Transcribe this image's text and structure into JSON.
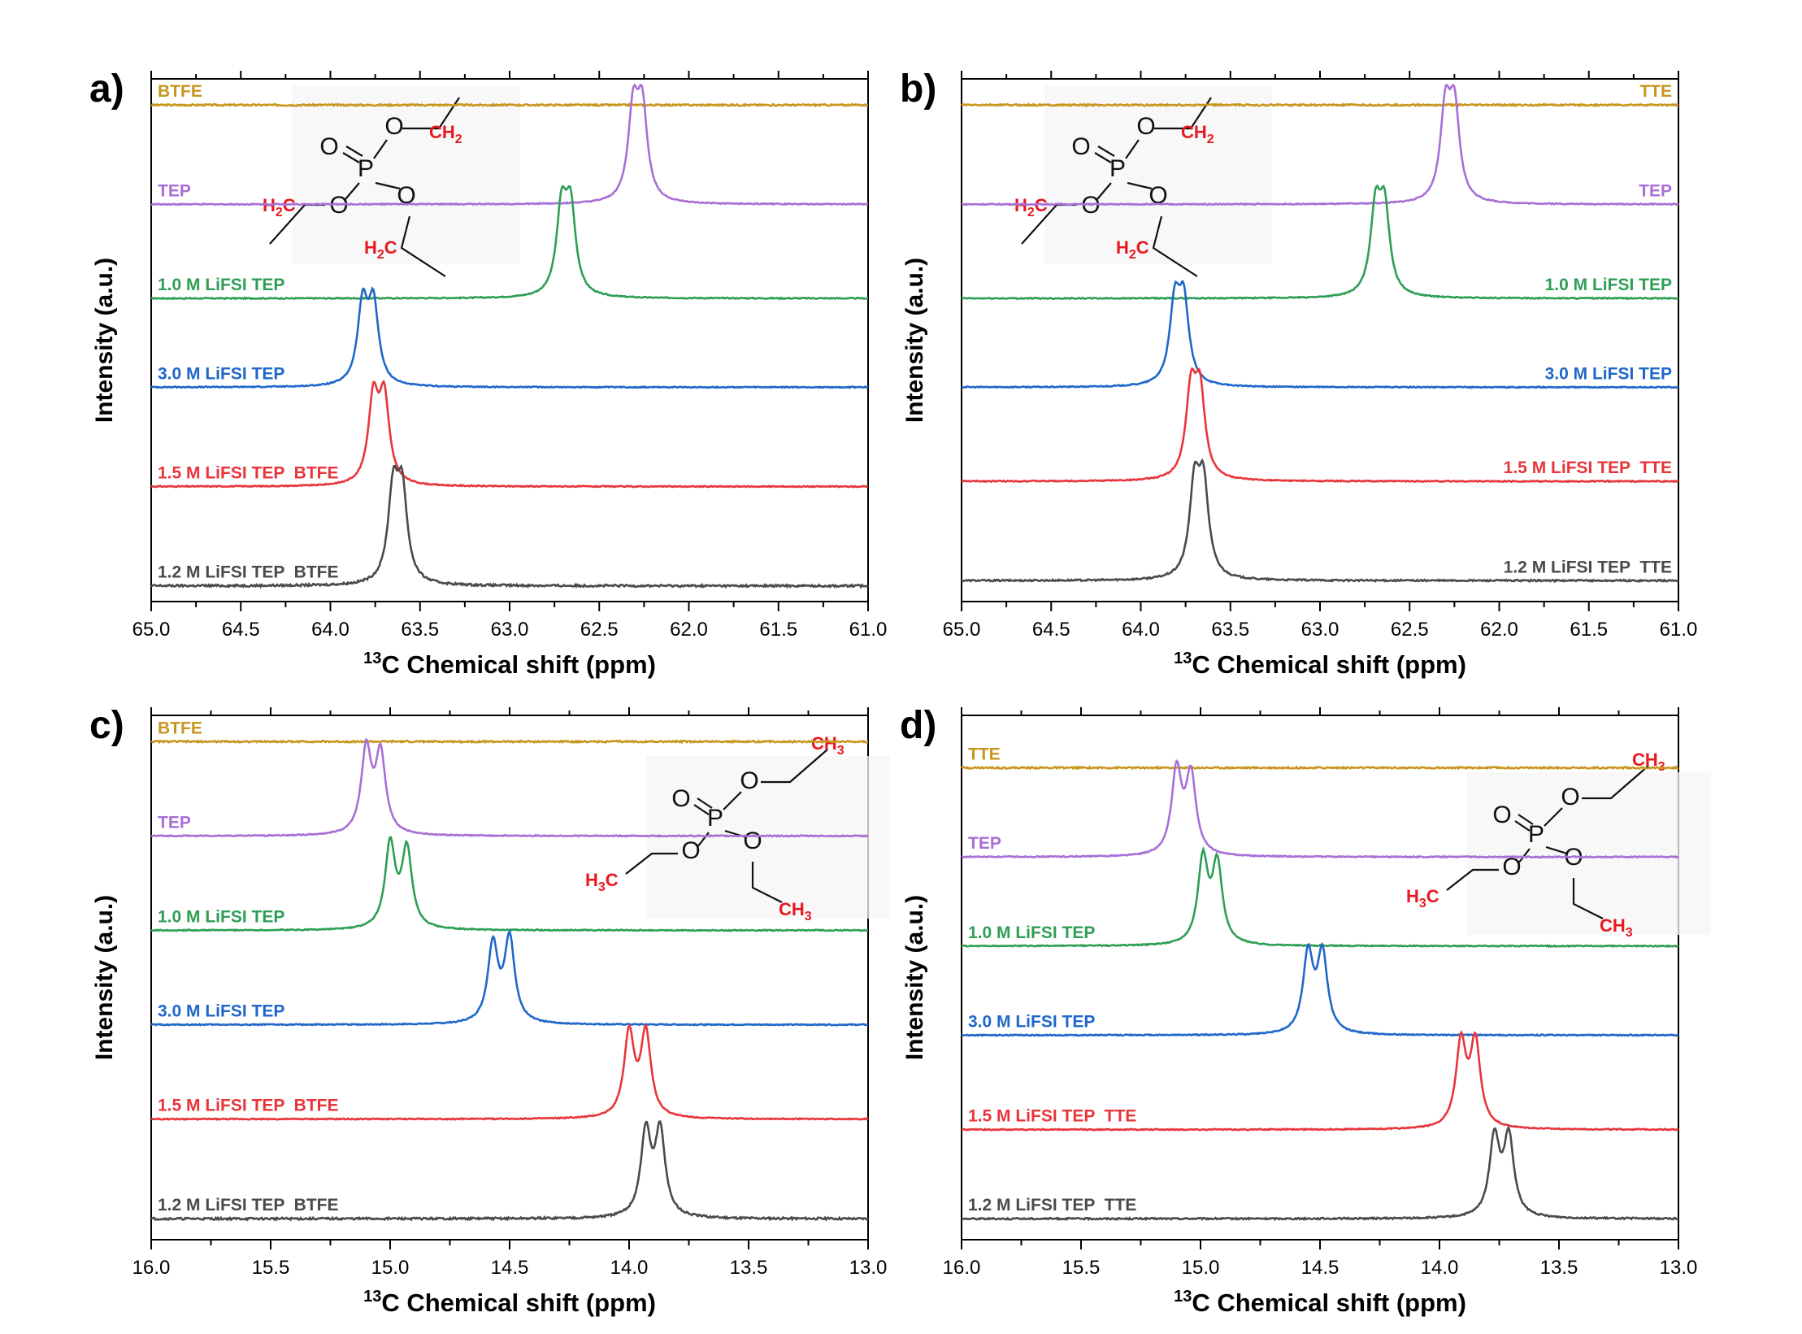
{
  "chart_data": [
    {
      "type": "line",
      "panel_label": "a)",
      "xlabel_sup": "13",
      "xlabel_rest": "C Chemical shift (ppm)",
      "ylabel": "Intensity (a.u.)",
      "xlim": [
        65.0,
        61.0
      ],
      "xticks": [
        "65.0",
        "64.5",
        "64.0",
        "63.5",
        "63.0",
        "62.5",
        "62.0",
        "61.5",
        "61.0"
      ],
      "xtick_values": [
        65.0,
        64.5,
        64.0,
        63.5,
        63.0,
        62.5,
        62.0,
        61.5,
        61.0
      ],
      "label_side": "left",
      "series": [
        {
          "name": "BTFE",
          "color": "#C8961E",
          "baseline": 0.95,
          "peaks": [],
          "noise": 0.003
        },
        {
          "name": "TEP",
          "color": "#A86FD6",
          "baseline": 0.76,
          "peaks": [
            {
              "x": 62.31,
              "h": 0.17
            },
            {
              "x": 62.26,
              "h": 0.17
            }
          ],
          "noise": 0.002
        },
        {
          "name": "1.0 M LiFSI TEP",
          "color": "#2E9E55",
          "baseline": 0.58,
          "peaks": [
            {
              "x": 62.71,
              "h": 0.16
            },
            {
              "x": 62.66,
              "h": 0.16
            }
          ],
          "noise": 0.002
        },
        {
          "name": "3.0 M LiFSI TEP",
          "color": "#1F67C9",
          "baseline": 0.41,
          "peaks": [
            {
              "x": 63.82,
              "h": 0.15
            },
            {
              "x": 63.76,
              "h": 0.15
            }
          ],
          "noise": 0.002
        },
        {
          "name": "1.5 M LiFSI TEP  BTFE",
          "color": "#E8353A",
          "baseline": 0.22,
          "peaks": [
            {
              "x": 63.76,
              "h": 0.16
            },
            {
              "x": 63.7,
              "h": 0.16
            }
          ],
          "noise": 0.002
        },
        {
          "name": "1.2 M LiFSI TEP  BTFE",
          "color": "#4A4A4A",
          "baseline": 0.03,
          "peaks": [
            {
              "x": 63.65,
              "h": 0.17
            },
            {
              "x": 63.6,
              "h": 0.17
            }
          ],
          "noise": 0.004
        }
      ],
      "molecule": {
        "type": "ch2",
        "atoms": [
          "O",
          "P",
          "O",
          "O",
          "CH",
          "2",
          "H",
          "2",
          "C",
          "H",
          "2",
          "C"
        ]
      }
    },
    {
      "type": "line",
      "panel_label": "b)",
      "xlabel_sup": "13",
      "xlabel_rest": "C Chemical shift (ppm)",
      "ylabel": "Intensity (a.u.)",
      "xlim": [
        65.0,
        61.0
      ],
      "xticks": [
        "65.0",
        "64.5",
        "64.0",
        "63.5",
        "63.0",
        "62.5",
        "62.0",
        "61.5",
        "61.0"
      ],
      "xtick_values": [
        65.0,
        64.5,
        64.0,
        63.5,
        63.0,
        62.5,
        62.0,
        61.5,
        61.0
      ],
      "label_side": "right",
      "series": [
        {
          "name": "TTE",
          "color": "#C8961E",
          "baseline": 0.95,
          "peaks": [],
          "noise": 0.003
        },
        {
          "name": "TEP",
          "color": "#A86FD6",
          "baseline": 0.76,
          "peaks": [
            {
              "x": 62.3,
              "h": 0.17
            },
            {
              "x": 62.25,
              "h": 0.17
            }
          ],
          "noise": 0.002
        },
        {
          "name": "1.0 M LiFSI TEP",
          "color": "#2E9E55",
          "baseline": 0.58,
          "peaks": [
            {
              "x": 62.69,
              "h": 0.16
            },
            {
              "x": 62.64,
              "h": 0.16
            }
          ],
          "noise": 0.002
        },
        {
          "name": "3.0 M LiFSI TEP",
          "color": "#1F67C9",
          "baseline": 0.41,
          "peaks": [
            {
              "x": 63.81,
              "h": 0.15
            },
            {
              "x": 63.76,
              "h": 0.15
            }
          ],
          "noise": 0.002
        },
        {
          "name": "1.5 M LiFSI TEP  TTE",
          "color": "#E8353A",
          "baseline": 0.23,
          "peaks": [
            {
              "x": 63.72,
              "h": 0.16
            },
            {
              "x": 63.67,
              "h": 0.16
            }
          ],
          "noise": 0.002
        },
        {
          "name": "1.2 M LiFSI TEP  TTE",
          "color": "#4A4A4A",
          "baseline": 0.04,
          "peaks": [
            {
              "x": 63.7,
              "h": 0.17
            },
            {
              "x": 63.65,
              "h": 0.17
            }
          ],
          "noise": 0.003
        }
      ],
      "molecule": {
        "type": "ch2",
        "atoms": [
          "O",
          "P",
          "O",
          "O",
          "CH",
          "2",
          "H",
          "2",
          "C",
          "H",
          "2",
          "C"
        ]
      }
    },
    {
      "type": "line",
      "panel_label": "c)",
      "xlabel_sup": "13",
      "xlabel_rest": "C Chemical shift (ppm)",
      "ylabel": "Intensity (a.u.)",
      "xlim": [
        16.0,
        13.0
      ],
      "xticks": [
        "16.0",
        "15.5",
        "15.0",
        "14.5",
        "14.0",
        "13.5",
        "13.0"
      ],
      "xtick_values": [
        16.0,
        15.5,
        15.0,
        14.5,
        14.0,
        13.5,
        13.0
      ],
      "label_side": "left",
      "series": [
        {
          "name": "BTFE",
          "color": "#C8961E",
          "baseline": 0.95,
          "peaks": [],
          "noise": 0.003
        },
        {
          "name": "TEP",
          "color": "#A86FD6",
          "baseline": 0.77,
          "peaks": [
            {
              "x": 15.1,
              "h": 0.16
            },
            {
              "x": 15.04,
              "h": 0.15
            }
          ],
          "noise": 0.002
        },
        {
          "name": "1.0 M LiFSI TEP",
          "color": "#2E9E55",
          "baseline": 0.59,
          "peaks": [
            {
              "x": 15.0,
              "h": 0.16
            },
            {
              "x": 14.93,
              "h": 0.15
            }
          ],
          "noise": 0.002
        },
        {
          "name": "3.0 M LiFSI TEP",
          "color": "#1F67C9",
          "baseline": 0.41,
          "peaks": [
            {
              "x": 14.57,
              "h": 0.15
            },
            {
              "x": 14.5,
              "h": 0.16
            }
          ],
          "noise": 0.002
        },
        {
          "name": "1.5 M LiFSI TEP  BTFE",
          "color": "#E8353A",
          "baseline": 0.23,
          "peaks": [
            {
              "x": 14.0,
              "h": 0.16
            },
            {
              "x": 13.93,
              "h": 0.16
            }
          ],
          "noise": 0.002
        },
        {
          "name": "1.2 M LiFSI TEP  BTFE",
          "color": "#4A4A4A",
          "baseline": 0.04,
          "peaks": [
            {
              "x": 13.93,
              "h": 0.16
            },
            {
              "x": 13.87,
              "h": 0.16
            }
          ],
          "noise": 0.004
        }
      ],
      "molecule": {
        "type": "ch3",
        "atoms": [
          "O",
          "P",
          "O",
          "O",
          "O",
          "CH",
          "3",
          "H",
          "3",
          "C",
          "CH",
          "3"
        ]
      }
    },
    {
      "type": "line",
      "panel_label": "d)",
      "xlabel_sup": "13",
      "xlabel_rest": "C Chemical shift (ppm)",
      "ylabel": "Intensity (a.u.)",
      "xlim": [
        16.0,
        13.0
      ],
      "xticks": [
        "16.0",
        "15.5",
        "15.0",
        "14.5",
        "14.0",
        "13.5",
        "13.0"
      ],
      "xtick_values": [
        16.0,
        15.5,
        15.0,
        14.5,
        14.0,
        13.5,
        13.0
      ],
      "label_side": "left",
      "series": [
        {
          "name": "TTE",
          "color": "#C8961E",
          "baseline": 0.9,
          "peaks": [],
          "noise": 0.003
        },
        {
          "name": "TEP",
          "color": "#A86FD6",
          "baseline": 0.73,
          "peaks": [
            {
              "x": 15.1,
              "h": 0.16
            },
            {
              "x": 15.04,
              "h": 0.15
            }
          ],
          "noise": 0.002
        },
        {
          "name": "1.0 M LiFSI TEP",
          "color": "#2E9E55",
          "baseline": 0.56,
          "peaks": [
            {
              "x": 14.99,
              "h": 0.16
            },
            {
              "x": 14.93,
              "h": 0.15
            }
          ],
          "noise": 0.002
        },
        {
          "name": "3.0 M LiFSI TEP",
          "color": "#1F67C9",
          "baseline": 0.39,
          "peaks": [
            {
              "x": 14.55,
              "h": 0.15
            },
            {
              "x": 14.49,
              "h": 0.15
            }
          ],
          "noise": 0.002
        },
        {
          "name": "1.5 M LiFSI TEP  TTE",
          "color": "#E8353A",
          "baseline": 0.21,
          "peaks": [
            {
              "x": 13.91,
              "h": 0.16
            },
            {
              "x": 13.85,
              "h": 0.16
            }
          ],
          "noise": 0.002
        },
        {
          "name": "1.2 M LiFSI TEP  TTE",
          "color": "#4A4A4A",
          "baseline": 0.04,
          "peaks": [
            {
              "x": 13.77,
              "h": 0.15
            },
            {
              "x": 13.71,
              "h": 0.15
            }
          ],
          "noise": 0.003
        }
      ],
      "molecule": {
        "type": "ch3",
        "atoms": [
          "O",
          "P",
          "O",
          "O",
          "O",
          "CH",
          "3",
          "H",
          "3",
          "C",
          "CH",
          "3"
        ]
      }
    }
  ]
}
